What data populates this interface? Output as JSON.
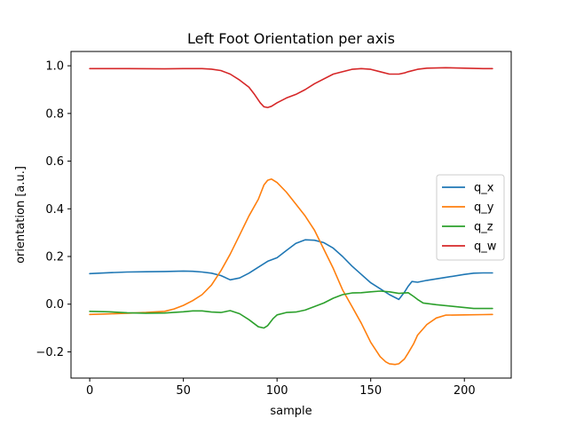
{
  "chart_data": {
    "type": "line",
    "title": "Left Foot Orientation per axis",
    "xlabel": "sample",
    "ylabel": "orientation [a.u.]",
    "xlim": [
      -10,
      225
    ],
    "ylim": [
      -0.31,
      1.06
    ],
    "xticks": [
      0,
      50,
      100,
      150,
      200
    ],
    "yticks": [
      -0.2,
      0.0,
      0.2,
      0.4,
      0.6,
      0.8,
      1.0
    ],
    "ytick_labels": [
      "−0.2",
      "0.0",
      "0.2",
      "0.4",
      "0.6",
      "0.8",
      "1.0"
    ],
    "grid": false,
    "legend_position": "center-right",
    "series": [
      {
        "name": "q_x",
        "color": "#1f77b4",
        "x": [
          0,
          10,
          20,
          30,
          40,
          50,
          55,
          60,
          65,
          70,
          75,
          80,
          85,
          90,
          95,
          100,
          105,
          110,
          115,
          120,
          125,
          130,
          135,
          140,
          145,
          150,
          155,
          160,
          165,
          168,
          170,
          172,
          175,
          180,
          190,
          200,
          205,
          210,
          215
        ],
        "y": [
          0.128,
          0.132,
          0.135,
          0.136,
          0.137,
          0.139,
          0.138,
          0.135,
          0.13,
          0.12,
          0.102,
          0.11,
          0.13,
          0.155,
          0.18,
          0.195,
          0.225,
          0.255,
          0.27,
          0.268,
          0.258,
          0.235,
          0.2,
          0.16,
          0.125,
          0.09,
          0.065,
          0.04,
          0.02,
          0.05,
          0.075,
          0.095,
          0.092,
          0.1,
          0.112,
          0.125,
          0.13,
          0.131,
          0.131
        ]
      },
      {
        "name": "q_y",
        "color": "#ff7f0e",
        "x": [
          0,
          10,
          20,
          30,
          40,
          45,
          50,
          55,
          60,
          65,
          70,
          75,
          80,
          85,
          90,
          93,
          95,
          97,
          100,
          105,
          110,
          115,
          120,
          125,
          130,
          135,
          140,
          145,
          150,
          155,
          158,
          160,
          163,
          165,
          168,
          170,
          173,
          175,
          180,
          185,
          190,
          200,
          210,
          215
        ],
        "y": [
          -0.043,
          -0.041,
          -0.038,
          -0.035,
          -0.03,
          -0.02,
          -0.005,
          0.015,
          0.04,
          0.08,
          0.14,
          0.21,
          0.29,
          0.37,
          0.44,
          0.5,
          0.52,
          0.525,
          0.51,
          0.47,
          0.42,
          0.37,
          0.31,
          0.23,
          0.15,
          0.06,
          -0.01,
          -0.08,
          -0.16,
          -0.22,
          -0.242,
          -0.25,
          -0.253,
          -0.25,
          -0.23,
          -0.205,
          -0.165,
          -0.13,
          -0.085,
          -0.058,
          -0.046,
          -0.045,
          -0.044,
          -0.043
        ]
      },
      {
        "name": "q_z",
        "color": "#2ca02c",
        "x": [
          0,
          10,
          20,
          30,
          40,
          50,
          55,
          60,
          65,
          70,
          75,
          80,
          85,
          90,
          93,
          95,
          98,
          100,
          105,
          110,
          115,
          120,
          125,
          130,
          135,
          140,
          145,
          150,
          155,
          160,
          165,
          170,
          173,
          175,
          178,
          185,
          195,
          205,
          215
        ],
        "y": [
          -0.03,
          -0.032,
          -0.036,
          -0.038,
          -0.037,
          -0.032,
          -0.028,
          -0.028,
          -0.033,
          -0.035,
          -0.027,
          -0.04,
          -0.065,
          -0.095,
          -0.1,
          -0.09,
          -0.06,
          -0.045,
          -0.035,
          -0.033,
          -0.025,
          -0.01,
          0.005,
          0.025,
          0.04,
          0.047,
          0.048,
          0.052,
          0.055,
          0.052,
          0.045,
          0.048,
          0.032,
          0.02,
          0.005,
          -0.002,
          -0.01,
          -0.018,
          -0.018
        ]
      },
      {
        "name": "q_w",
        "color": "#d62728",
        "x": [
          0,
          20,
          40,
          50,
          60,
          65,
          70,
          75,
          80,
          85,
          88,
          91,
          93,
          95,
          97,
          100,
          105,
          110,
          115,
          120,
          130,
          140,
          145,
          150,
          155,
          160,
          165,
          168,
          170,
          175,
          180,
          190,
          200,
          210,
          215
        ],
        "y": [
          0.988,
          0.988,
          0.987,
          0.988,
          0.988,
          0.986,
          0.98,
          0.965,
          0.94,
          0.91,
          0.88,
          0.845,
          0.828,
          0.825,
          0.83,
          0.845,
          0.865,
          0.88,
          0.9,
          0.925,
          0.965,
          0.985,
          0.988,
          0.985,
          0.975,
          0.965,
          0.965,
          0.97,
          0.975,
          0.985,
          0.99,
          0.992,
          0.99,
          0.988,
          0.988
        ]
      }
    ]
  }
}
